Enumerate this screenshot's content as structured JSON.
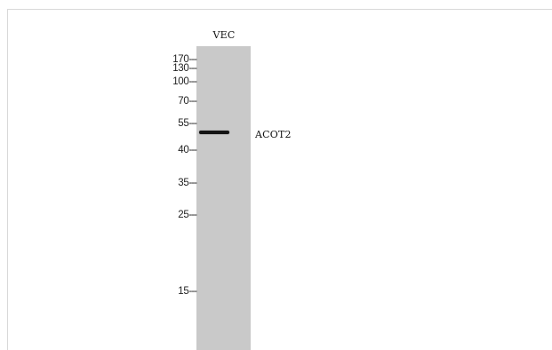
{
  "lane": {
    "label": "VEC"
  },
  "band": {
    "label": "ACOT2"
  },
  "markers": [
    {
      "label": "170",
      "dash": "---"
    },
    {
      "label": "130",
      "dash": "---"
    },
    {
      "label": "100",
      "dash": "---"
    },
    {
      "label": "70",
      "dash": "---"
    },
    {
      "label": "55",
      "dash": "---"
    },
    {
      "label": "40",
      "dash": "---"
    },
    {
      "label": "35",
      "dash": "---"
    },
    {
      "label": "25",
      "dash": "---"
    },
    {
      "label": "15",
      "dash": "---"
    }
  ]
}
